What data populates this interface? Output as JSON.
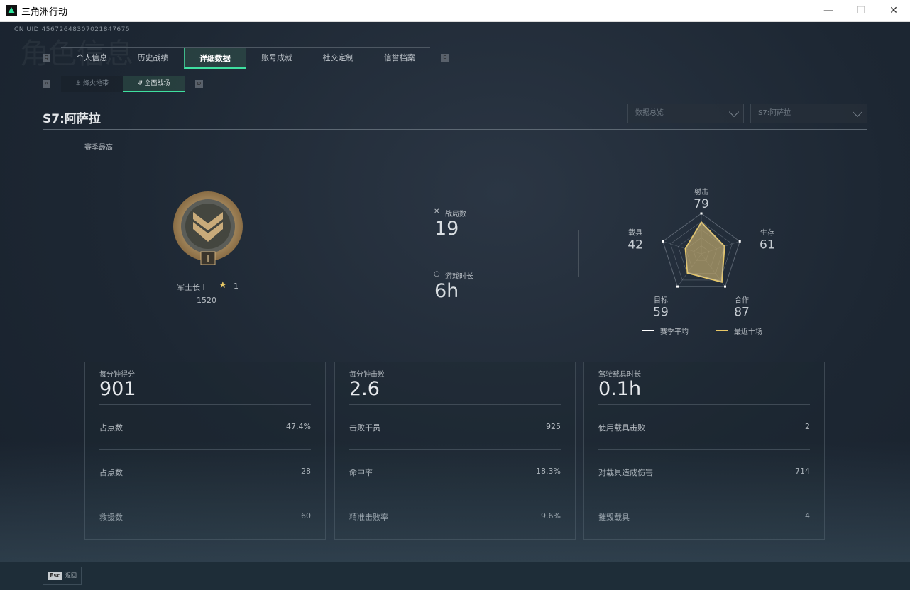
{
  "window": {
    "title": "三角洲行动",
    "minimize": "—",
    "maximize": "☐",
    "close": "✕"
  },
  "uid": "CN UID:45672648307021847675",
  "bg_title": "角色信息",
  "keys": {
    "prev_tab": "Q",
    "next_tab": "E",
    "prev_sub": "A",
    "next_sub": "D"
  },
  "tabs": [
    {
      "label": "个人信息"
    },
    {
      "label": "历史战绩"
    },
    {
      "label": "详细数据",
      "active": true
    },
    {
      "label": "账号成就"
    },
    {
      "label": "社交定制"
    },
    {
      "label": "信誉档案"
    }
  ],
  "subtabs": [
    {
      "label": "烽火地带",
      "icon": "anchor-icon"
    },
    {
      "label": "全面战场",
      "icon": "trident-icon",
      "active": true
    }
  ],
  "season_title": "S7:阿萨拉",
  "dropdowns": [
    {
      "value": "数据总览"
    },
    {
      "value": "S7:阿萨拉"
    }
  ],
  "season_best_label": "赛季最高",
  "rank": {
    "name": "军士长 I",
    "stars": "1",
    "score": "1520",
    "badge_numeral": "I"
  },
  "summary": {
    "matches_label": "战局数",
    "matches": "19",
    "time_label": "游戏时长",
    "time": "6h"
  },
  "radar": {
    "axes": [
      {
        "label": "射击",
        "value": 79
      },
      {
        "label": "生存",
        "value": 61
      },
      {
        "label": "合作",
        "value": 87
      },
      {
        "label": "目标",
        "value": 59
      },
      {
        "label": "载具",
        "value": 42
      }
    ],
    "legend": [
      {
        "label": "赛季平均",
        "color": "#ffffff"
      },
      {
        "label": "最近十场",
        "color": "#e8c866"
      }
    ]
  },
  "cards": [
    {
      "head": "每分钟得分",
      "value": "901",
      "rows": [
        {
          "label": "占点数",
          "value": "47.4%"
        },
        {
          "label": "占点数",
          "value": "28"
        },
        {
          "label": "救援数",
          "value": "60"
        }
      ]
    },
    {
      "head": "每分钟击败",
      "value": "2.6",
      "rows": [
        {
          "label": "击败干员",
          "value": "925"
        },
        {
          "label": "命中率",
          "value": "18.3%"
        },
        {
          "label": "精准击败率",
          "value": "9.6%"
        }
      ]
    },
    {
      "head": "驾驶载具时长",
      "value": "0.1h",
      "rows": [
        {
          "label": "使用载具击败",
          "value": "2"
        },
        {
          "label": "对载具造成伤害",
          "value": "714"
        },
        {
          "label": "摧毁载具",
          "value": "4"
        }
      ]
    }
  ],
  "footer": {
    "esc_key": "Esc",
    "back_label": "返回"
  },
  "colors": {
    "accent": "#3fe0a0",
    "radar_fill": "#b39f6a"
  }
}
